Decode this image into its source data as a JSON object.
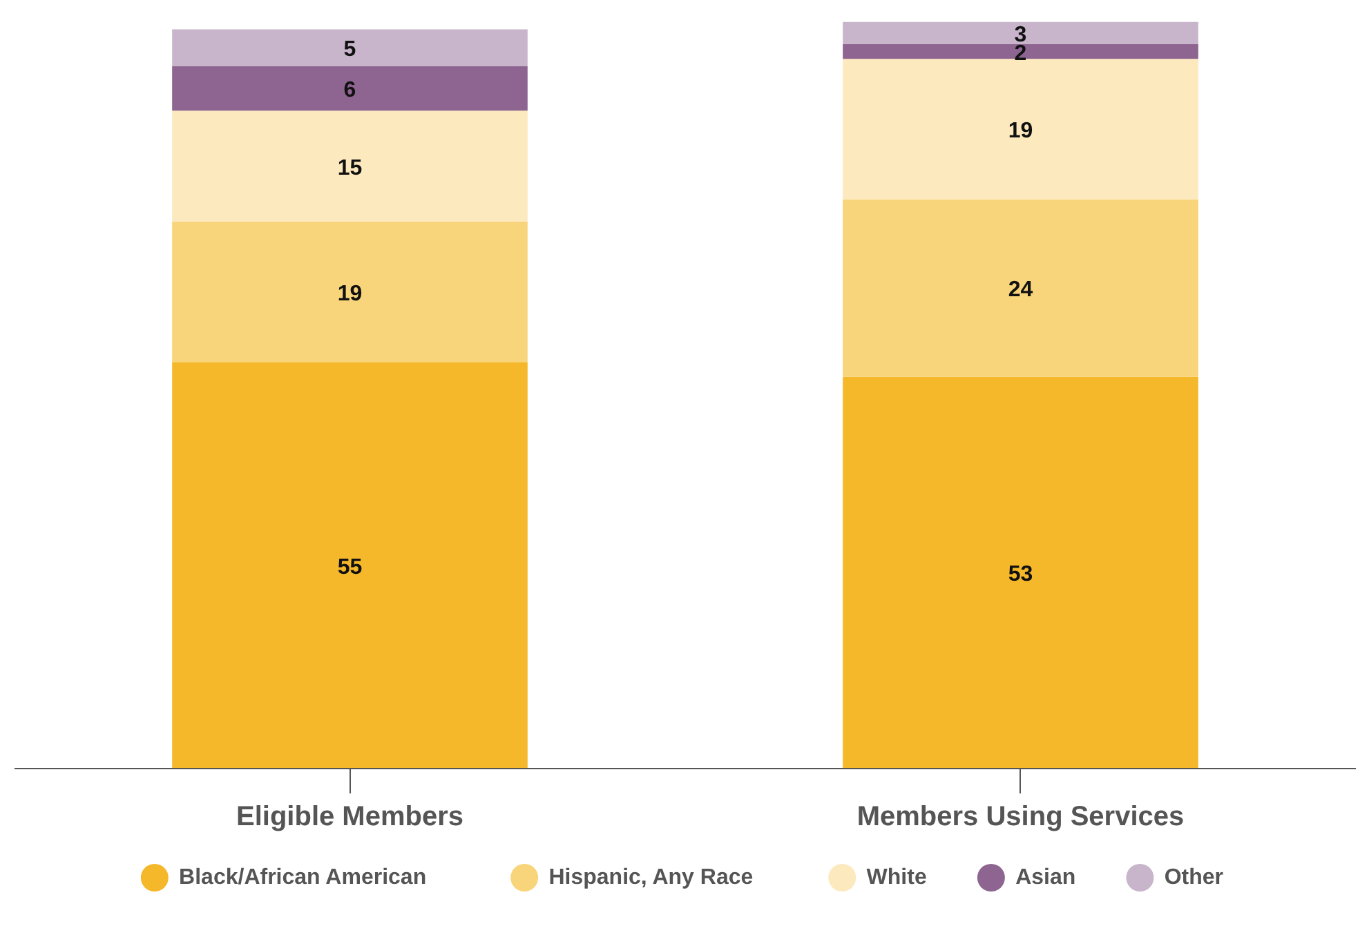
{
  "chart_data": {
    "type": "bar",
    "stacked": true,
    "data_labels": true,
    "legend": "bottom",
    "grid": false,
    "categories": [
      "Eligible Members",
      "Members Using Services"
    ],
    "series": [
      {
        "name": "Black/African American",
        "color": "#f5b82a",
        "values": [
          55,
          53
        ]
      },
      {
        "name": "Hispanic, Any Race",
        "color": "#f8d47a",
        "values": [
          19,
          24
        ]
      },
      {
        "name": "White",
        "color": "#fde9be",
        "values": [
          15,
          19
        ]
      },
      {
        "name": "Asian",
        "color": "#8e6490",
        "values": [
          6,
          2
        ]
      },
      {
        "name": "Other",
        "color": "#c8b4cb",
        "values": [
          5,
          3
        ]
      }
    ]
  }
}
